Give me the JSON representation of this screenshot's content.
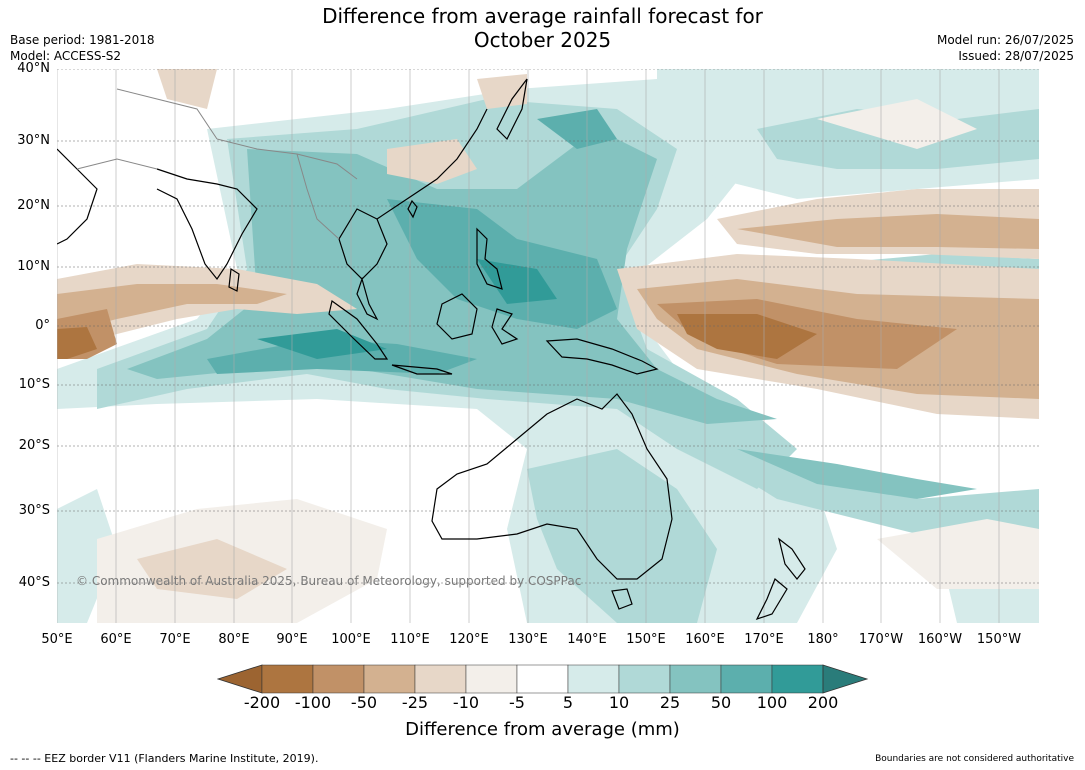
{
  "title_line1": "Difference from average rainfall forecast for",
  "title_line2": "October 2025",
  "base_period": "Base period: 1981-2018",
  "model": "Model: ACCESS-S2",
  "model_run": "Model run: 26/07/2025",
  "issued": "Issued: 28/07/2025",
  "lat_labels": [
    "40°N",
    "30°N",
    "20°N",
    "10°N",
    "0°",
    "10°S",
    "20°S",
    "30°S",
    "40°S"
  ],
  "lon_labels": [
    "50°E",
    "60°E",
    "70°E",
    "80°E",
    "90°E",
    "100°E",
    "110°E",
    "120°E",
    "130°E",
    "140°E",
    "150°E",
    "160°E",
    "170°E",
    "180°",
    "170°W",
    "160°W",
    "150°W"
  ],
  "copyright": "© Commonwealth of Australia 2025, Bureau of Meteorology, supported by COSPPac",
  "colorbar": {
    "ticks": [
      "-200",
      "-100",
      "-50",
      "-25",
      "-10",
      "-5",
      "5",
      "10",
      "25",
      "50",
      "100",
      "200"
    ],
    "label": "Difference from average (mm)",
    "colors": [
      "#9c6431",
      "#ad7540",
      "#c19167",
      "#d3b190",
      "#e7d7c8",
      "#f3efea",
      "#ffffff",
      "#d6ebea",
      "#b0d9d7",
      "#84c3c0",
      "#5cafad",
      "#319b98",
      "#2a7c7a"
    ]
  },
  "footer_left": "--  --  -- EEZ border V11 (Flanders Marine Institute, 2019).",
  "footer_right": "Boundaries are not considered authoritative"
}
